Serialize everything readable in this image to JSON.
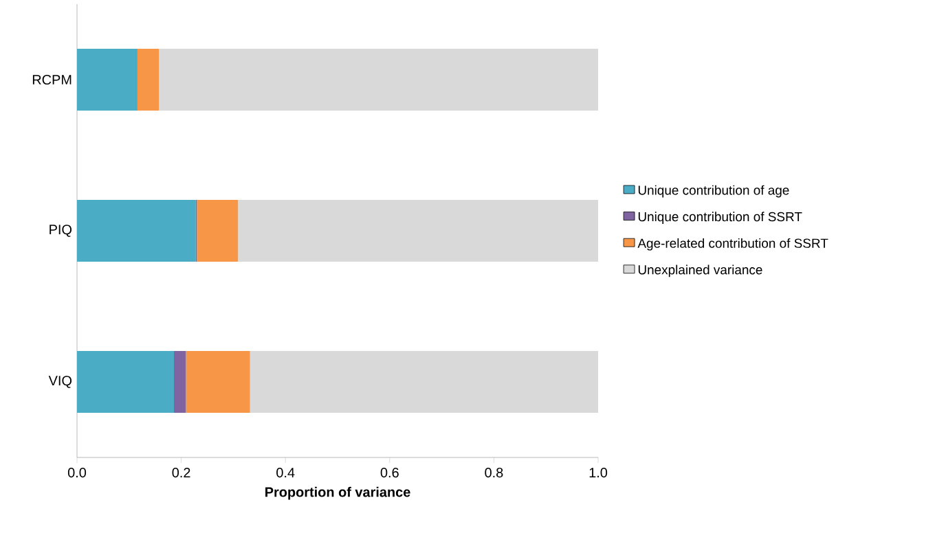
{
  "chart_data": {
    "type": "bar",
    "orientation": "horizontal",
    "stacked": true,
    "xlabel": "Proportion of variance",
    "categories": [
      "RCPM",
      "PIQ",
      "VIQ"
    ],
    "series": [
      {
        "name": "Unique contribution of age",
        "color": "#4bacc6",
        "values": [
          0.116,
          0.228,
          0.186
        ]
      },
      {
        "name": "Unique contribution of SSRT",
        "color": "#8064a2",
        "values": [
          0,
          0.002,
          0.023
        ]
      },
      {
        "name": "Age-related contribution of SSRT",
        "color": "#f79646",
        "values": [
          0.041,
          0.079,
          0.123
        ]
      },
      {
        "name": "Unexplained variance",
        "color": "#d9d9d9",
        "values": [
          0.843,
          0.691,
          0.668
        ]
      }
    ],
    "xlim": [
      0,
      1
    ],
    "xticks": [
      {
        "value": 0,
        "label": "0.0"
      },
      0.2,
      0.4,
      0.6,
      0.8,
      {
        "value": 1,
        "label": "1.0"
      }
    ],
    "grid": false,
    "legend": "right"
  }
}
